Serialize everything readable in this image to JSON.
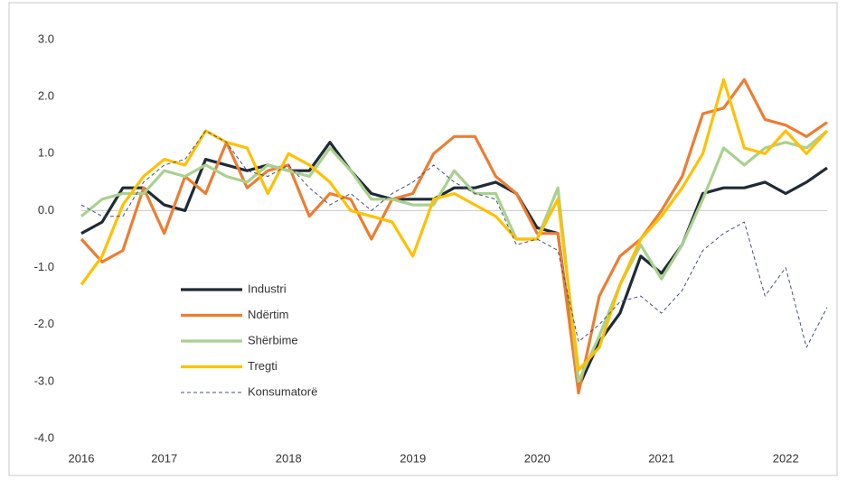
{
  "chart_data": {
    "type": "line",
    "x": [
      2016.333,
      2016.5,
      2016.667,
      2016.833,
      2017.0,
      2017.167,
      2017.333,
      2017.5,
      2017.667,
      2017.833,
      2018.0,
      2018.167,
      2018.333,
      2018.5,
      2018.667,
      2018.833,
      2019.0,
      2019.167,
      2019.333,
      2019.5,
      2019.667,
      2019.833,
      2020.0,
      2020.167,
      2020.333,
      2020.5,
      2020.667,
      2020.833,
      2021.0,
      2021.167,
      2021.333,
      2021.5,
      2021.667,
      2021.833,
      2022.0,
      2022.167,
      2022.333
    ],
    "series": [
      {
        "name": "Industri",
        "color": "#1f2a36",
        "dashed": false,
        "values": [
          -0.4,
          -0.2,
          0.4,
          0.4,
          0.1,
          0.0,
          0.9,
          0.8,
          0.7,
          0.8,
          0.7,
          0.7,
          1.2,
          0.7,
          0.3,
          0.2,
          0.2,
          0.2,
          0.4,
          0.4,
          0.5,
          0.3,
          -0.3,
          -0.4,
          -3.1,
          -2.3,
          -1.8,
          -0.8,
          -1.1,
          -0.6,
          0.3,
          0.4,
          0.4,
          0.5,
          0.3,
          0.5,
          0.75
        ]
      },
      {
        "name": "Ndërtim",
        "color": "#ed7d31",
        "dashed": false,
        "values": [
          -0.5,
          -0.9,
          -0.7,
          0.4,
          -0.4,
          0.6,
          0.3,
          1.2,
          0.4,
          0.7,
          0.8,
          -0.1,
          0.3,
          0.2,
          -0.5,
          0.2,
          0.3,
          1.0,
          1.3,
          1.3,
          0.6,
          0.3,
          -0.4,
          -0.4,
          -3.2,
          -1.5,
          -0.8,
          -0.5,
          0.0,
          0.6,
          1.7,
          1.8,
          2.3,
          1.6,
          1.5,
          1.3,
          1.55
        ]
      },
      {
        "name": "Shërbime",
        "color": "#a9d18e",
        "dashed": false,
        "values": [
          -0.1,
          0.2,
          0.3,
          0.3,
          0.7,
          0.6,
          0.8,
          0.6,
          0.5,
          0.8,
          0.7,
          0.6,
          1.1,
          0.7,
          0.2,
          0.2,
          0.1,
          0.1,
          0.7,
          0.3,
          0.3,
          -0.5,
          -0.5,
          0.4,
          -3.0,
          -2.2,
          -1.3,
          -0.6,
          -1.2,
          -0.6,
          0.2,
          1.1,
          0.8,
          1.1,
          1.2,
          1.1,
          1.4
        ]
      },
      {
        "name": "Tregti",
        "color": "#ffc000",
        "dashed": false,
        "values": [
          -1.3,
          -0.8,
          0.1,
          0.6,
          0.9,
          0.8,
          1.4,
          1.2,
          1.1,
          0.3,
          1.0,
          0.8,
          0.5,
          0.0,
          -0.1,
          -0.2,
          -0.8,
          0.2,
          0.3,
          0.1,
          -0.1,
          -0.5,
          -0.5,
          0.2,
          -2.8,
          -2.4,
          -1.3,
          -0.5,
          -0.1,
          0.4,
          1.0,
          2.3,
          1.1,
          1.0,
          1.4,
          1.0,
          1.4
        ]
      },
      {
        "name": "Konsumatorë",
        "color": "#44507a",
        "dashed": true,
        "values": [
          0.1,
          -0.1,
          -0.1,
          0.5,
          0.8,
          0.9,
          1.4,
          1.2,
          0.7,
          0.6,
          0.8,
          0.4,
          0.1,
          0.3,
          0.0,
          0.3,
          0.5,
          0.8,
          0.5,
          0.3,
          0.2,
          -0.6,
          -0.5,
          -0.7,
          -2.3,
          -2.0,
          -1.6,
          -1.5,
          -1.8,
          -1.4,
          -0.7,
          -0.4,
          -0.2,
          -1.5,
          -1.0,
          -2.4,
          -1.7
        ]
      }
    ],
    "xlim": [
      2016.333,
      2022.333
    ],
    "xticks": [
      {
        "value": 2016.333,
        "label": "2016"
      },
      2017,
      2018,
      2019,
      2020,
      2021,
      2022
    ],
    "ylim": [
      -4,
      3
    ],
    "yticks": [
      {
        "value": 3,
        "label": "3.0"
      },
      {
        "value": 2,
        "label": "2.0"
      },
      {
        "value": 1,
        "label": "1.0"
      },
      {
        "value": 0,
        "label": "0.0"
      },
      {
        "value": -1,
        "label": "-1.0"
      },
      {
        "value": -2,
        "label": "-2.0"
      },
      {
        "value": -3,
        "label": "-3.0"
      },
      {
        "value": -4,
        "label": "-4.0"
      }
    ],
    "zero_line": true
  }
}
